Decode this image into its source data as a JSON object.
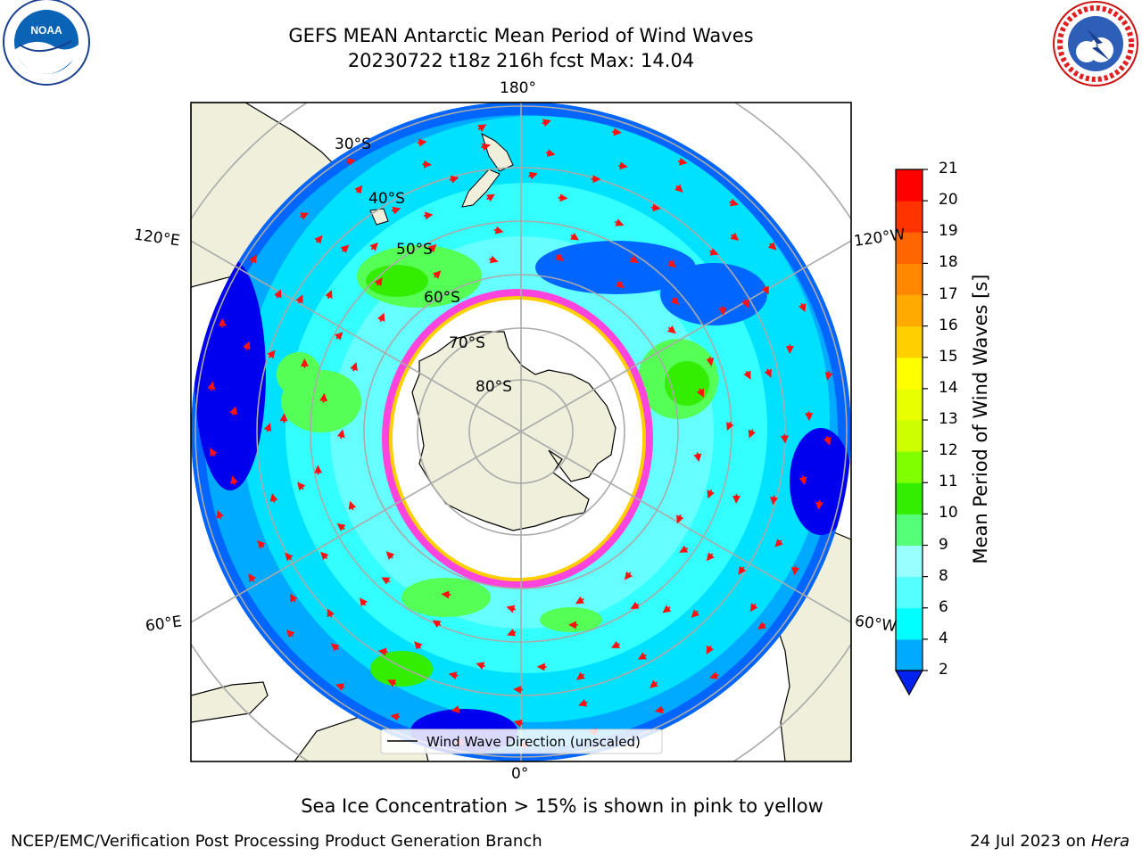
{
  "title_line1": "GEFS MEAN Antarctic Mean Period of Wind Waves",
  "title_line2": "20230722 t18z 216h fcst   Max: 14.04",
  "longitude_labels": {
    "top": "180°",
    "bottom": "0°",
    "left_upper": "120°E",
    "left_lower": "60°E",
    "right_upper": "120°W",
    "right_lower": "60°W"
  },
  "latitude_labels": [
    "30°S",
    "40°S",
    "50°S",
    "60°S",
    "70°S",
    "80°S"
  ],
  "legend_label": "Wind Wave Direction (unscaled)",
  "colorbar": {
    "label": "Mean Period of Wind Waves [s]",
    "ticks": [
      "21",
      "20",
      "19",
      "18",
      "17",
      "16",
      "15",
      "14",
      "13",
      "12",
      "11",
      "10",
      "9",
      "8",
      "6",
      "4",
      "2"
    ],
    "colors": [
      "#ff0000",
      "#ff3300",
      "#ff6600",
      "#ff8800",
      "#ffaa00",
      "#ffd000",
      "#ffff00",
      "#e8ff00",
      "#ccff00",
      "#80ff00",
      "#33ee00",
      "#55ff77",
      "#99ffff",
      "#55ffff",
      "#00ffff",
      "#00aaff",
      "#0055ff"
    ]
  },
  "sea_ice_note": "Sea Ice Concentration > 15% is shown in pink to yellow",
  "footer_left": "NCEP/EMC/Verification Post Processing Product Generation Branch",
  "footer_right_date": "24 Jul 2023 on ",
  "footer_right_host": "Hera",
  "logos": {
    "left": "NOAA",
    "right": "NATIONAL WEATHER SERVICE"
  }
}
